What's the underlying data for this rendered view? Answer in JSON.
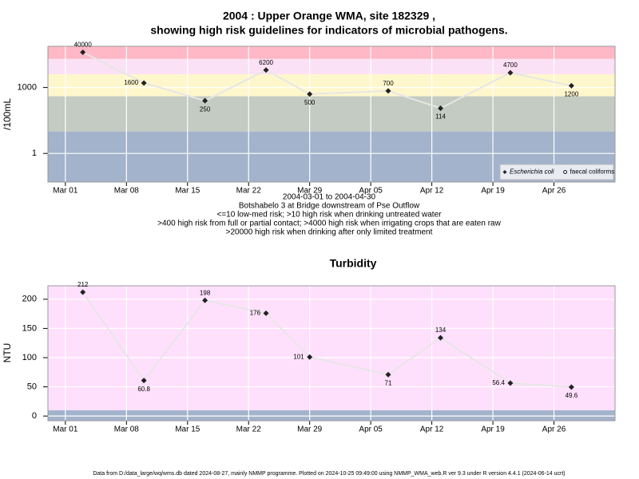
{
  "chart_data": [
    {
      "type": "line",
      "title": "2004 : Upper Orange WMA, site 182329 ,",
      "subtitle": "showing high risk guidelines for indicators of microbial pathogens.",
      "y_label": "/100mL",
      "notes": [
        "2004-03-01 to 2004-04-30",
        "Botshabelo 3 at Bridge downstream of Pse Outflow",
        "<=10 low-med risk; >10 high risk when drinking untreated water",
        ">400 high risk from full or partial contact; >4000 high risk when irrigating crops that are eaten raw",
        ">20000 high risk when drinking after only limited treatment"
      ],
      "x": [
        "2004-03-03",
        "2004-03-10",
        "2004-03-17",
        "2004-03-24",
        "2004-03-29",
        "2004-04-07",
        "2004-04-13",
        "2004-04-21",
        "2004-04-28"
      ],
      "series": [
        {
          "name": "Escherichia coli",
          "color": "#222222",
          "marker": "diamond",
          "values": [
            40000,
            1600,
            250,
            6200,
            500,
            700,
            114,
            4700,
            1200
          ]
        },
        {
          "name": "faecal coliforms",
          "color": "#222222",
          "marker": "circle",
          "values": [
            null,
            null,
            null,
            null,
            null,
            null,
            null,
            null,
            null
          ]
        }
      ],
      "xlim": [
        "2004-02-28",
        "2004-05-03"
      ],
      "xticks": [
        {
          "value": "2004-03-01",
          "label": "Mar 01"
        },
        {
          "value": "2004-03-08",
          "label": "Mar 08"
        },
        {
          "value": "2004-03-15",
          "label": "Mar 15"
        },
        {
          "value": "2004-03-22",
          "label": "Mar 22"
        },
        {
          "value": "2004-03-29",
          "label": "Mar 29"
        },
        {
          "value": "2004-04-05",
          "label": "Apr 05"
        },
        {
          "value": "2004-04-12",
          "label": "Apr 12"
        },
        {
          "value": "2004-04-19",
          "label": "Apr 19"
        },
        {
          "value": "2004-04-26",
          "label": "Apr 26"
        }
      ],
      "ylim": [
        0.05,
        75000
      ],
      "yticks": [
        1,
        1000
      ],
      "log_y": true,
      "grid": true,
      "legend": "bottom-right",
      "bands": [
        {
          "to": 10,
          "color": "#a3b3cc"
        },
        {
          "from": 10,
          "to": 400,
          "color": "#c3cbc2"
        },
        {
          "from": 400,
          "to": 4000,
          "color": "#fff7cc"
        },
        {
          "from": 4000,
          "to": 20000,
          "color": "#fbe1f5"
        },
        {
          "from": 20000,
          "color": "#ffb8c6"
        }
      ]
    },
    {
      "type": "line",
      "title": "Turbidity",
      "y_label": "NTU",
      "x": [
        "2004-03-03",
        "2004-03-10",
        "2004-03-17",
        "2004-03-24",
        "2004-03-29",
        "2004-04-07",
        "2004-04-13",
        "2004-04-21",
        "2004-04-28"
      ],
      "values": [
        212,
        60.8,
        198,
        176,
        101,
        71,
        134,
        56.4,
        49.6
      ],
      "color": "#222222",
      "xlim": [
        "2004-02-28",
        "2004-05-03"
      ],
      "xticks": [
        {
          "value": "2004-03-01",
          "label": "Mar 01"
        },
        {
          "value": "2004-03-08",
          "label": "Mar 08"
        },
        {
          "value": "2004-03-15",
          "label": "Mar 15"
        },
        {
          "value": "2004-03-22",
          "label": "Mar 22"
        },
        {
          "value": "2004-03-29",
          "label": "Mar 29"
        },
        {
          "value": "2004-04-05",
          "label": "Apr 05"
        },
        {
          "value": "2004-04-12",
          "label": "Apr 12"
        },
        {
          "value": "2004-04-19",
          "label": "Apr 19"
        },
        {
          "value": "2004-04-26",
          "label": "Apr 26"
        }
      ],
      "ylim": [
        -8,
        223
      ],
      "yticks": [
        0,
        50,
        100,
        150,
        200
      ],
      "grid": true,
      "bands": [
        {
          "to": 10,
          "color": "#a3b3cc"
        },
        {
          "from": 10,
          "color": "#ffe0fc"
        }
      ]
    }
  ],
  "footer": "Data from D:/data_large/wq/wms.db dated 2024-08-27, mainly NMMP programme. Plotted on 2024-10-25 09:49:00 using NMMP_WMA_web.R ver 9.3 under R version 4.4.1 (2024-06-14 ucrt)"
}
